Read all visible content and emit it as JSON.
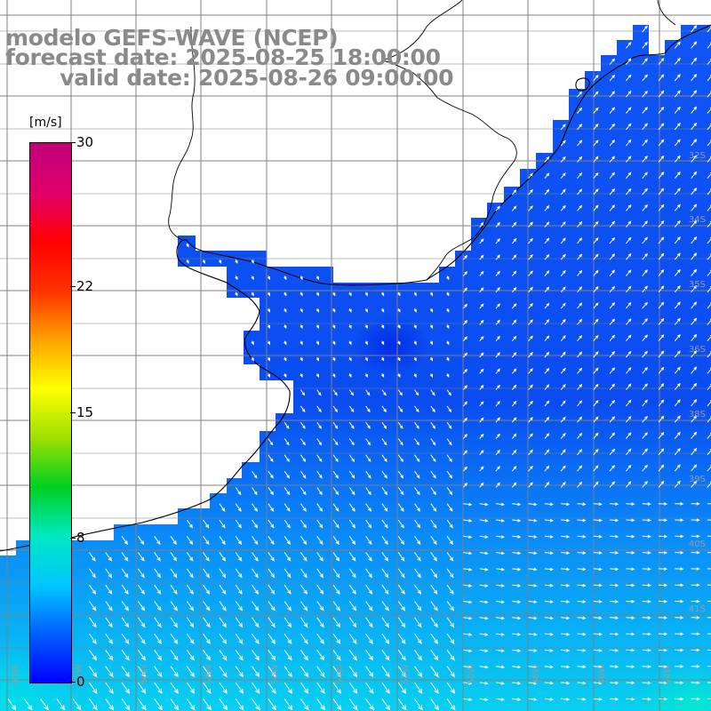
{
  "title": {
    "model": "modelo GEFS-WAVE (NCEP)",
    "forecast": "forecast date: 2025-08-25 18:00:00",
    "valid": "   valid date: 2025-08-26 09:00:00"
  },
  "colorbar": {
    "unit": "[m/s]",
    "ticks": [
      {
        "label": "30",
        "value": 30
      },
      {
        "label": "22",
        "value": 22
      },
      {
        "label": "15",
        "value": 15
      },
      {
        "label": "8",
        "value": 8
      },
      {
        "label": "0",
        "value": 0
      }
    ],
    "colors": [
      "#0000ff",
      "#0060ff",
      "#00c8ff",
      "#00e8c0",
      "#00d020",
      "#a0e000",
      "#ffff00",
      "#ffa000",
      "#ff3000",
      "#ff0000",
      "#e0006a",
      "#c0007a"
    ]
  },
  "axes": {
    "lon_labels": [
      "64W",
      "62W",
      "60W",
      "58W",
      "56W",
      "54W",
      "52W",
      "50W",
      "48W",
      "46W",
      "44W"
    ],
    "lat_labels": [
      "32S",
      "34S",
      "35S",
      "36S",
      "38S",
      "39S",
      "40S",
      "41S"
    ]
  },
  "colors": {
    "land": "#ffffff",
    "grid": "#808080",
    "coast": "#000000",
    "arrow": "#ffffff",
    "title": "#8a8a8a"
  }
}
